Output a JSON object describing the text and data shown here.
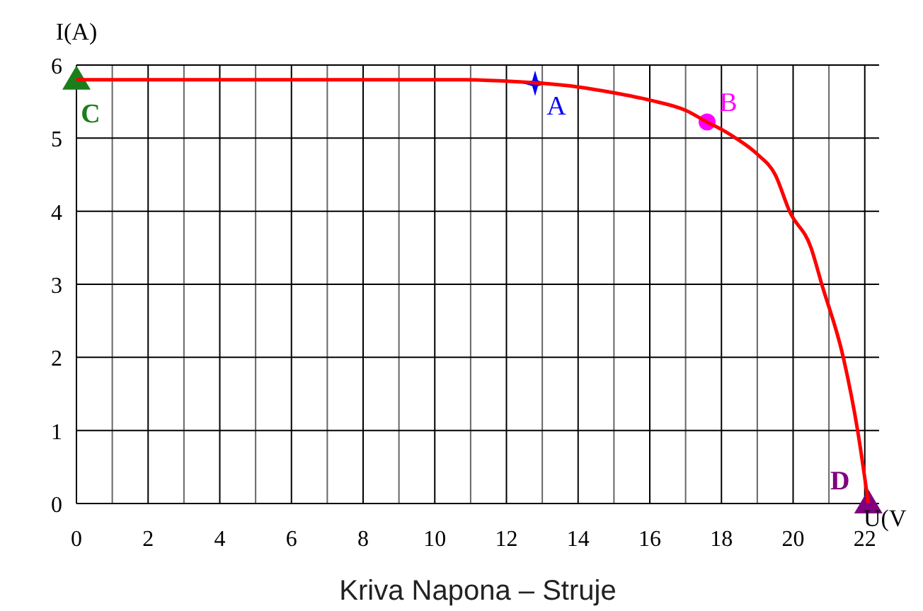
{
  "chart_data": {
    "type": "line",
    "title": "Kriva Napona – Struje",
    "xlabel": "U(V",
    "ylabel": "I(A)",
    "xlim": [
      0,
      22.4
    ],
    "ylim": [
      0,
      6
    ],
    "xticks": [
      0,
      {
        "value": 1,
        "label": null
      },
      2,
      {
        "value": 3,
        "label": null
      },
      4,
      {
        "value": 5,
        "label": null
      },
      6,
      {
        "value": 7,
        "label": null
      },
      8,
      {
        "value": 9,
        "label": null
      },
      10,
      {
        "value": 11,
        "label": null
      },
      12,
      {
        "value": 13,
        "label": null
      },
      14,
      {
        "value": 15,
        "label": null
      },
      16,
      {
        "value": 17,
        "label": null
      },
      18,
      {
        "value": 19,
        "label": null
      },
      20,
      {
        "value": 21,
        "label": null
      },
      22
    ],
    "yticks": [
      0,
      1,
      2,
      3,
      4,
      5,
      6
    ],
    "grid": true,
    "legend": false,
    "series": [
      {
        "color": "#ff0000",
        "marker": "none",
        "x": [
          0,
          10.9,
          12,
          13,
          14,
          15,
          16,
          17,
          17.6,
          18,
          18.4,
          19,
          19.5,
          19.9,
          20.5,
          20.8,
          21.4,
          21.8,
          22.1
        ],
        "values": [
          5.8,
          5.8,
          5.78,
          5.75,
          5.7,
          5.62,
          5.52,
          5.38,
          5.22,
          5.12,
          5,
          4.78,
          4.5,
          4,
          3.5,
          3,
          2,
          1,
          0
        ]
      },
      {
        "type": "scatter",
        "name": "C",
        "color": "#1a7f1a",
        "marker": "triangle",
        "x": [
          0
        ],
        "values": [
          5.8
        ]
      },
      {
        "type": "scatter",
        "name": "A",
        "color": "#0000ff",
        "marker": "cross",
        "x": [
          12.8
        ],
        "values": [
          5.75
        ]
      },
      {
        "type": "scatter",
        "name": "B",
        "color": "#ff00ff",
        "marker": "circle",
        "x": [
          17.6
        ],
        "values": [
          5.22
        ]
      },
      {
        "type": "scatter",
        "name": "D",
        "color": "#800080",
        "marker": "triangle",
        "x": [
          22.1
        ],
        "values": [
          0
        ]
      }
    ]
  }
}
